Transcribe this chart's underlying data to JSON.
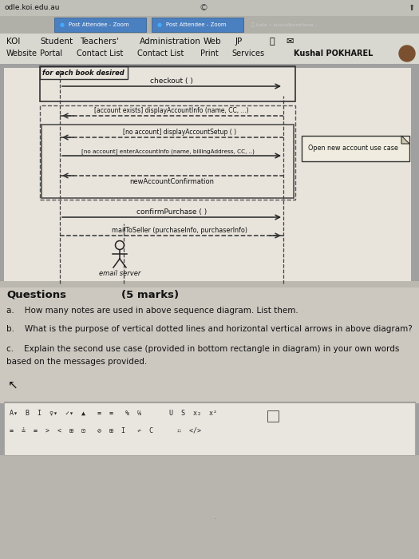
{
  "title_url": "odle.koi.edu.au",
  "tab1": "Post Attendee - Zoom",
  "tab2": "Post Attendee - Zoom",
  "nav_row1": [
    "KOI",
    "Student",
    "Teachers'",
    "Administration",
    "Web",
    "JP"
  ],
  "nav_row1_x": [
    8,
    50,
    100,
    175,
    255,
    295
  ],
  "nav_row2": [
    "Website",
    "Portal",
    "Contact List",
    "Contact List",
    "Print",
    "Services",
    "Kushal POKHAREL"
  ],
  "nav_row2_x": [
    8,
    50,
    96,
    172,
    251,
    290,
    368
  ],
  "loop_label": "for each book desired",
  "note_text": "Open new account use case",
  "q_title": "Questions",
  "q_marks": "(5 marks)",
  "qa": "a.    How many notes are used in above sequence diagram. List them.",
  "qb": "b.    What is the purpose of vertical dotted lines and horizontal vertical arrows in above diagram?",
  "qc1": "c.    Explain the second use case (provided in bottom rectangle in diagram) in your own words",
  "qc2": "based on the messages provided.",
  "bg_color": "#a0a0a0",
  "page_bg": "#c8c8c0",
  "diag_bg": "#ddd8d0",
  "nav_bg": "#d8d8d0",
  "q_bg": "#d0cfc8",
  "toolbar_bg": "#e8e8e0",
  "url_bg": "#c0c0b8",
  "tab_color": "#4a7fc0"
}
